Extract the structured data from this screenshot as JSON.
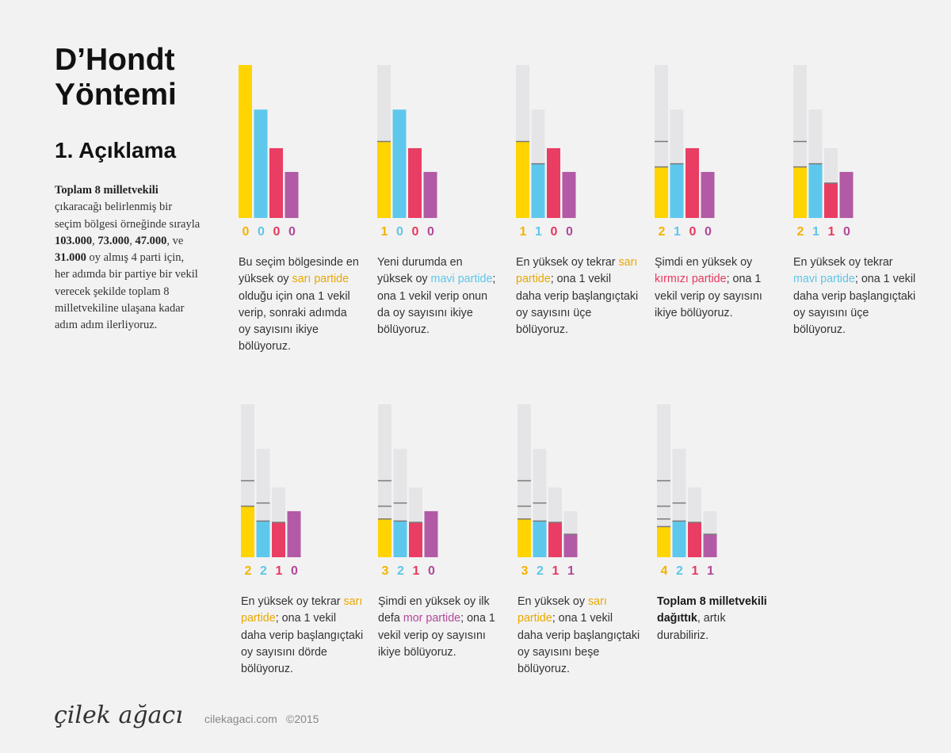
{
  "header": {
    "title_line1": "D’Hondt",
    "title_line2": "Yöntemi",
    "subtitle": "1. Açıklama"
  },
  "intro": {
    "b1": "Toplam 8 milletvekili",
    "t1": " çıkaracağı belirlenmiş bir seçim bölgesi örneğinde sırayla ",
    "b2": "103.000",
    "t2": ", ",
    "b3": "73.000",
    "t3": ", ",
    "b4": "47.000",
    "t4": ", ve ",
    "b5": "31.000",
    "t5": " oy almış 4 parti için, her adımda bir partiye bir vekil verecek şekilde toplam 8 milletvekiline ulaşana kadar adım adım ilerliyoruz."
  },
  "colors": {
    "sari": "#ffd400",
    "mavi": "#5ec8ec",
    "kirmizi": "#ea3d63",
    "mor": "#b25aa6",
    "ghost": "#e5e5e7",
    "divider": "#7a7a7a"
  },
  "chart_data": {
    "type": "bar",
    "title": "D’Hondt Yöntemi",
    "categories": [
      "sarı parti",
      "mavi parti",
      "kırmızı parti",
      "mor parti"
    ],
    "votes": [
      103000,
      73000,
      47000,
      31000
    ],
    "ylim": [
      0,
      103000
    ],
    "steps": [
      {
        "seats": [
          "0",
          "0",
          "0",
          "0"
        ],
        "caption": [
          {
            "t": "Bu seçim bölgesinde en yüksek oy "
          },
          {
            "t": "sarı partide",
            "c": "sari"
          },
          {
            "t": " olduğu için ona 1 vekil verip, sonraki adımda oy sayısını ikiye bölüyoruz."
          }
        ]
      },
      {
        "seats": [
          "1",
          "0",
          "0",
          "0"
        ],
        "caption": [
          {
            "t": "Yeni durumda en yüksek oy "
          },
          {
            "t": "mavi partide",
            "c": "mavi"
          },
          {
            "t": "; ona 1 vekil verip onun da oy sayısını ikiye bölüyoruz."
          }
        ]
      },
      {
        "seats": [
          "1",
          "1",
          "0",
          "0"
        ],
        "caption": [
          {
            "t": "En yüksek oy tekrar "
          },
          {
            "t": "sarı partide",
            "c": "sari"
          },
          {
            "t": "; ona 1 vekil daha verip başlangıçtaki oy sayısını üçe bölüyoruz."
          }
        ]
      },
      {
        "seats": [
          "2",
          "1",
          "0",
          "0"
        ],
        "caption": [
          {
            "t": "Şimdi en yüksek oy "
          },
          {
            "t": "kırmızı partide",
            "c": "kirmizi"
          },
          {
            "t": "; ona 1 vekil verip oy sayısını ikiye bölüyoruz."
          }
        ]
      },
      {
        "seats": [
          "2",
          "1",
          "1",
          "0"
        ],
        "caption": [
          {
            "t": "En yüksek oy tekrar "
          },
          {
            "t": "mavi partide",
            "c": "mavi"
          },
          {
            "t": "; ona 1 vekil daha verip başlangıçtaki oy sayısını üçe bölüyoruz."
          }
        ]
      },
      {
        "seats": [
          "2",
          "2",
          "1",
          "0"
        ],
        "caption": [
          {
            "t": "En yüksek oy tekrar "
          },
          {
            "t": "sarı partide",
            "c": "sari"
          },
          {
            "t": "; ona 1 vekil daha verip başlangıçtaki oy sayısını dörde bölüyoruz."
          }
        ]
      },
      {
        "seats": [
          "3",
          "2",
          "1",
          "0"
        ],
        "caption": [
          {
            "t": "Şimdi en yüksek oy ilk defa "
          },
          {
            "t": "mor partide",
            "c": "mor"
          },
          {
            "t": "; ona 1 vekil verip oy sayısını ikiye bölüyoruz."
          }
        ]
      },
      {
        "seats": [
          "3",
          "2",
          "1",
          "1"
        ],
        "caption": [
          {
            "t": "En yüksek oy "
          },
          {
            "t": "sarı partide",
            "c": "sari"
          },
          {
            "t": "; ona 1 vekil daha verip başlangıçtaki oy sayısını beşe bölüyoruz."
          }
        ]
      },
      {
        "seats": [
          "4",
          "2",
          "1",
          "1"
        ],
        "caption": [
          {
            "t": "Toplam 8 milletvekili dağıttık",
            "c": "strong"
          },
          {
            "t": ", artık durabiliriz."
          }
        ]
      }
    ]
  },
  "footer": {
    "logo": "çilek ağacı",
    "site": "cilekagaci.com",
    "year": "©2015"
  }
}
